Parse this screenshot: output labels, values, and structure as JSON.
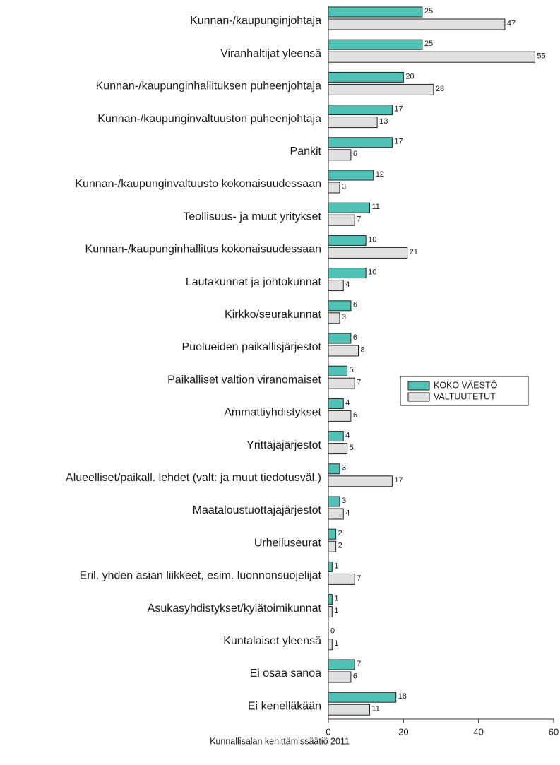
{
  "chart_data": {
    "type": "bar",
    "orientation": "horizontal",
    "categories": [
      "Kunnan-/kaupunginjohtaja",
      "Viranhaltijat yleensä",
      "Kunnan-/kaupunginhallituksen puheenjohtaja",
      "Kunnan-/kaupunginvaltuuston puheenjohtaja",
      "Pankit",
      "Kunnan-/kaupunginvaltuusto kokonaisuudessaan",
      "Teollisuus- ja muut yritykset",
      "Kunnan-/kaupunginhallitus kokonaisuudessaan",
      "Lautakunnat ja johtokunnat",
      "Kirkko/seurakunnat",
      "Puolueiden paikallisjärjestöt",
      "Paikalliset valtion viranomaiset",
      "Ammattiyhdistykset",
      "Yrittäjäjärjestöt",
      "Alueelliset/paikall. lehdet (valt: ja muut tiedotusväl.)",
      "Maataloustuottajajärjestöt",
      "Urheiluseurat",
      "Eril. yhden asian liikkeet, esim. luonnonsuojelijat",
      "Asukasyhdistykset/kylätoimikunnat",
      "Kuntalaiset yleensä",
      "Ei osaa sanoa",
      "Ei kenelläkään"
    ],
    "series": [
      {
        "name": "KOKO VÄESTÖ",
        "color": "#4fc1b5",
        "values": [
          25,
          25,
          20,
          17,
          17,
          12,
          11,
          10,
          10,
          6,
          6,
          5,
          4,
          4,
          3,
          3,
          2,
          1,
          1,
          0,
          7,
          18
        ]
      },
      {
        "name": "VALTUUTETUT",
        "color": "#e0e0e0",
        "values": [
          47,
          55,
          28,
          13,
          6,
          3,
          7,
          21,
          4,
          3,
          8,
          7,
          6,
          5,
          17,
          4,
          2,
          7,
          1,
          1,
          6,
          11
        ]
      }
    ],
    "xlim": [
      0,
      60
    ],
    "xticks": [
      0,
      20,
      40,
      60
    ],
    "legend_position": "right",
    "source": "Kunnallisalan kehittämissäätiö 2011"
  }
}
